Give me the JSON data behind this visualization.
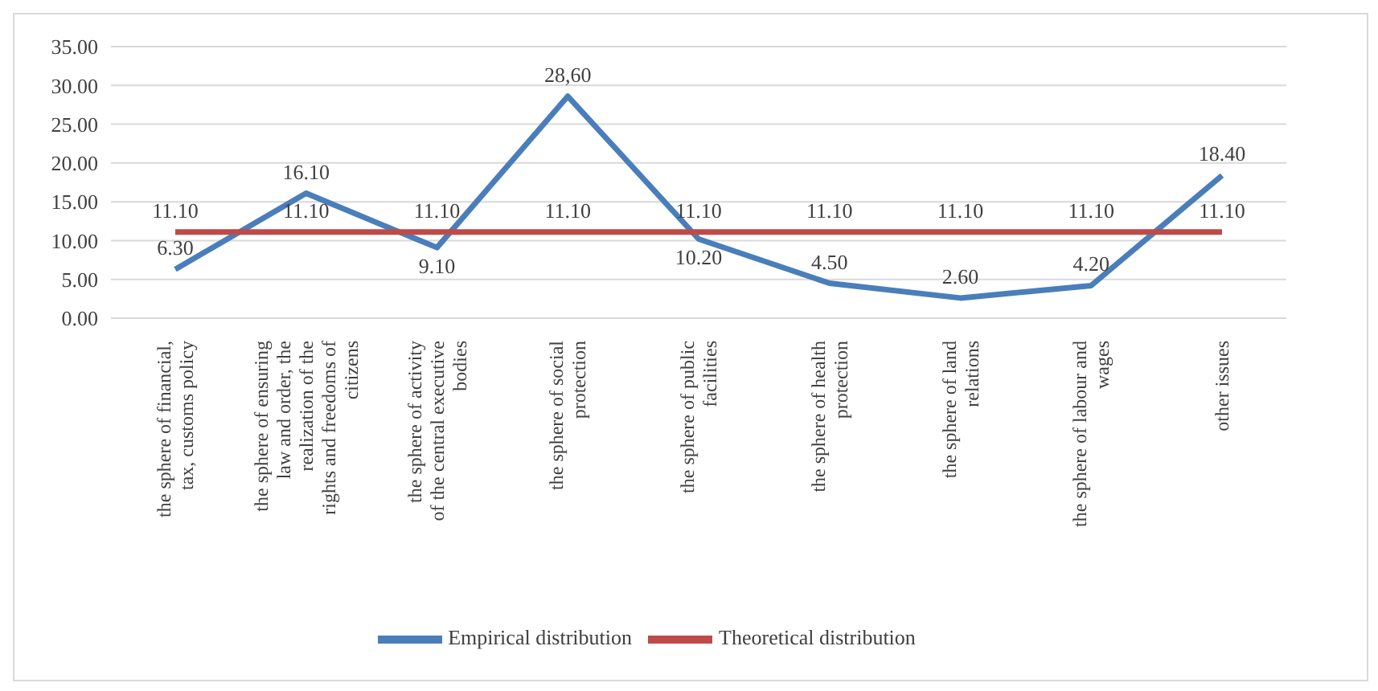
{
  "chart_data": {
    "type": "line",
    "categories": [
      "the sphere of financial, tax, customs policy",
      "the sphere of ensuring law and order, the realization of the rights and freedoms of citizens",
      "the sphere of activity of the central executive bodies",
      "the sphere of social protection",
      "the sphere of public facilities",
      "the sphere of health protection",
      "the sphere of land relations",
      "the sphere of labour and wages",
      "other issues"
    ],
    "series": [
      {
        "name": "Empirical distribution",
        "color": "#4a7ebb",
        "values": [
          6.3,
          16.1,
          9.1,
          28.6,
          10.2,
          4.5,
          2.6,
          4.2,
          18.4
        ],
        "value_labels": [
          "6.30",
          "16.10",
          "9.10",
          "28,60",
          "10.20",
          "4.50",
          "2.60",
          "4.20",
          "18.40"
        ]
      },
      {
        "name": "Theoretical distribution",
        "color": "#be4b48",
        "values": [
          11.1,
          11.1,
          11.1,
          11.1,
          11.1,
          11.1,
          11.1,
          11.1,
          11.1
        ],
        "value_labels": [
          "11.10",
          "11.10",
          "11.10",
          "11.10",
          "11.10",
          "11.10",
          "11.10",
          "11.10",
          "11.10"
        ]
      }
    ],
    "ylim": [
      0,
      35
    ],
    "yticks": [
      {
        "value": 0,
        "label": "0.00"
      },
      {
        "value": 5,
        "label": "5.00"
      },
      {
        "value": 10,
        "label": "10.00"
      },
      {
        "value": 15,
        "label": "15.00"
      },
      {
        "value": 20,
        "label": "20.00"
      },
      {
        "value": 25,
        "label": "25.00"
      },
      {
        "value": 30,
        "label": "30.00"
      },
      {
        "value": 35,
        "label": "35.00"
      }
    ],
    "grid": "y",
    "legend": "bottom",
    "marker": "none",
    "line_style": "solid"
  }
}
